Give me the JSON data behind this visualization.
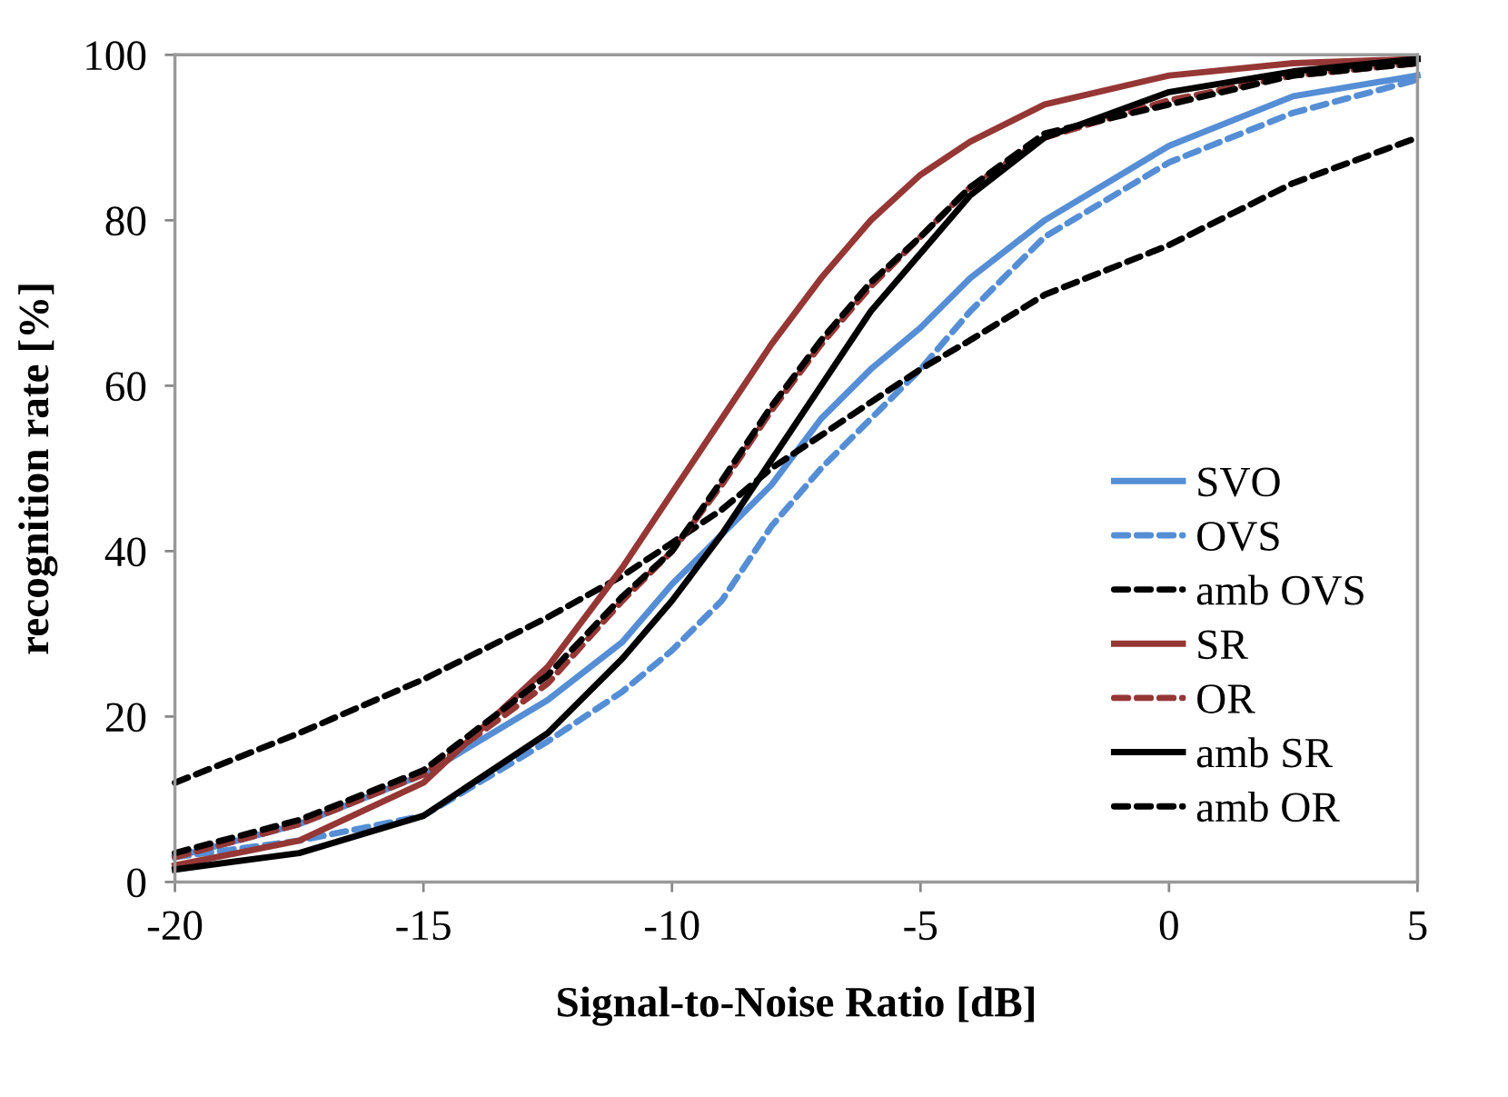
{
  "chart_data": {
    "type": "line",
    "xlabel": "Signal-to-Noise Ratio [dB]",
    "ylabel": "recognition rate [%]",
    "x": [
      -20,
      -17.5,
      -15,
      -12.5,
      -11,
      -10,
      -9,
      -8,
      -7,
      -6,
      -5,
      -4,
      -2.5,
      0,
      2.5,
      5
    ],
    "xlim": [
      -20,
      5
    ],
    "xticks": [
      -20,
      -15,
      -10,
      -5,
      0,
      5
    ],
    "ylim": [
      0,
      100
    ],
    "yticks": [
      0,
      20,
      40,
      60,
      80,
      100
    ],
    "grid": false,
    "legend": "bottom right",
    "marker": "none",
    "series": [
      {
        "name": "SVO",
        "color": "#558ed5",
        "line_style": "solid",
        "values": [
          3,
          7,
          13,
          22,
          29,
          36,
          42,
          48,
          56,
          62,
          67,
          73,
          80,
          89,
          95,
          97.5
        ]
      },
      {
        "name": "OVS",
        "color": "#558ed5",
        "line_style": "dashed",
        "values": [
          3,
          5,
          8,
          17,
          23,
          28,
          34,
          43,
          50,
          56,
          62,
          69,
          78,
          87,
          93,
          97
        ]
      },
      {
        "name": "amb OVS",
        "color": "#000000",
        "line_style": "dashed",
        "values": [
          12,
          18,
          24.5,
          32,
          37,
          41,
          45,
          50,
          54,
          58,
          62,
          65.5,
          71,
          77,
          84.5,
          90
        ]
      },
      {
        "name": "SR",
        "color": "#953735",
        "line_style": "solid",
        "values": [
          2,
          5,
          12,
          26,
          38,
          47,
          56,
          65,
          73,
          80,
          85.5,
          89.5,
          94,
          97.5,
          99,
          99.5
        ]
      },
      {
        "name": "OR",
        "color": "#953735",
        "line_style": "dashed",
        "values": [
          3,
          7,
          13,
          24,
          34,
          40,
          48,
          57,
          65,
          72,
          78,
          84,
          90,
          94.5,
          97.5,
          99
        ]
      },
      {
        "name": "amb SR",
        "color": "#000000",
        "line_style": "solid",
        "values": [
          1.5,
          3.5,
          8,
          18,
          27,
          34,
          42,
          51,
          60,
          69,
          76,
          83,
          90,
          95.5,
          98,
          99.5
        ]
      },
      {
        "name": "amb OR",
        "color": "#000000",
        "line_style": "dashed",
        "values": [
          3.5,
          7.5,
          13.5,
          25,
          34.5,
          40,
          48.5,
          57.5,
          65.5,
          72.5,
          78,
          84,
          90.5,
          94,
          97.5,
          99
        ]
      }
    ]
  }
}
